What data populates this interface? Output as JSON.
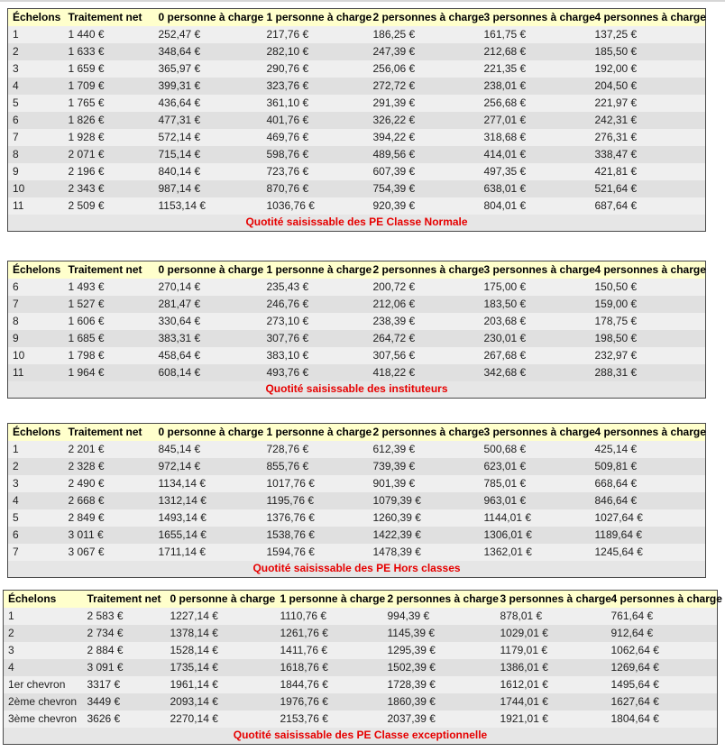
{
  "colors": {
    "header_bg": "#ffffcc",
    "row_light": "#efefef",
    "row_dark": "#e0e0e0",
    "caption_bg": "#e6e6e6",
    "caption_text": "#e60000",
    "table_border": "#4a4a4a"
  },
  "tables": [
    {
      "name": "pe-classe-normale",
      "headers": [
        "Échelons",
        "Traitement net",
        "0 personne à charge",
        "1 personne à charge",
        "2 personnes à charge",
        "3 personnes à charge",
        "4 personnes à charge"
      ],
      "rows": [
        [
          "1",
          "1 440 €",
          "252,47 €",
          "217,76 €",
          "186,25 €",
          "161,75 €",
          "137,25 €"
        ],
        [
          "2",
          "1 633 €",
          "348,64 €",
          "282,10 €",
          "247,39 €",
          "212,68 €",
          "185,50 €"
        ],
        [
          "3",
          "1 659 €",
          "365,97 €",
          "290,76 €",
          "256,06 €",
          "221,35 €",
          "192,00 €"
        ],
        [
          "4",
          "1 709 €",
          "399,31 €",
          "323,76 €",
          "272,72 €",
          "238,01 €",
          "204,50 €"
        ],
        [
          "5",
          "1 765 €",
          "436,64 €",
          "361,10 €",
          "291,39 €",
          "256,68 €",
          "221,97 €"
        ],
        [
          "6",
          "1 826 €",
          "477,31 €",
          "401,76 €",
          "326,22 €",
          "277,01 €",
          "242,31 €"
        ],
        [
          "7",
          "1 928 €",
          "572,14 €",
          "469,76 €",
          "394,22 €",
          "318,68 €",
          "276,31 €"
        ],
        [
          "8",
          "2 071 €",
          "715,14 €",
          "598,76 €",
          "489,56 €",
          "414,01 €",
          "338,47 €"
        ],
        [
          "9",
          "2 196 €",
          "840,14 €",
          "723,76 €",
          "607,39 €",
          "497,35 €",
          "421,81 €"
        ],
        [
          "10",
          "2 343 €",
          "987,14 €",
          "870,76 €",
          "754,39 €",
          "638,01 €",
          "521,64 €"
        ],
        [
          "11",
          "2 509 €",
          "1153,14 €",
          "1036,76 €",
          "920,39 €",
          "804,01 €",
          "687,64 €"
        ]
      ],
      "caption": "Quotité saisissable des PE Classe Normale"
    },
    {
      "name": "instituteurs",
      "headers": [
        "Échelons",
        "Traitement net",
        "0 personne à charge",
        "1 personne à charge",
        "2 personnes à charge",
        "3 personnes à charge",
        "4 personnes à charge"
      ],
      "rows": [
        [
          "6",
          "1 493 €",
          "270,14 €",
          "235,43 €",
          "200,72 €",
          "175,00 €",
          "150,50 €"
        ],
        [
          "7",
          "1 527 €",
          "281,47 €",
          "246,76 €",
          "212,06 €",
          "183,50 €",
          "159,00 €"
        ],
        [
          "8",
          "1 606 €",
          "330,64 €",
          "273,10 €",
          "238,39 €",
          "203,68 €",
          "178,75 €"
        ],
        [
          "9",
          "1 685 €",
          "383,31 €",
          "307,76 €",
          "264,72 €",
          "230,01 €",
          "198,50 €"
        ],
        [
          "10",
          "1 798 €",
          "458,64 €",
          "383,10 €",
          "307,56 €",
          "267,68 €",
          "232,97 €"
        ],
        [
          "11",
          "1 964 €",
          "608,14 €",
          "493,76 €",
          "418,22 €",
          "342,68 €",
          "288,31 €"
        ]
      ],
      "caption": "Quotité saisissable des instituteurs"
    },
    {
      "name": "pe-hors-classes",
      "headers": [
        "Échelons",
        "Traitement net",
        "0 personne à charge",
        "1 personne à charge",
        "2 personnes à charge",
        "3 personnes à charge",
        "4 personnes à charge"
      ],
      "rows": [
        [
          "1",
          "2 201 €",
          "845,14 €",
          "728,76 €",
          "612,39 €",
          "500,68 €",
          "425,14 €"
        ],
        [
          "2",
          "2 328 €",
          "972,14 €",
          "855,76 €",
          "739,39 €",
          "623,01 €",
          "509,81 €"
        ],
        [
          "3",
          "2 490 €",
          "1134,14 €",
          "1017,76 €",
          "901,39 €",
          "785,01 €",
          "668,64 €"
        ],
        [
          "4",
          "2 668 €",
          "1312,14 €",
          "1195,76 €",
          "1079,39 €",
          "963,01 €",
          "846,64 €"
        ],
        [
          "5",
          "2 849 €",
          "1493,14 €",
          "1376,76 €",
          "1260,39 €",
          "1144,01 €",
          "1027,64 €"
        ],
        [
          "6",
          "3 011 €",
          "1655,14 €",
          "1538,76 €",
          "1422,39 €",
          "1306,01 €",
          "1189,64 €"
        ],
        [
          "7",
          "3 067 €",
          "1711,14 €",
          "1594,76 €",
          "1478,39 €",
          "1362,01 €",
          "1245,64 €"
        ]
      ],
      "caption": "Quotité saisissable des PE Hors classes"
    },
    {
      "name": "pe-classe-exceptionnelle",
      "headers": [
        "Échelons",
        "Traitement net",
        "0 personne à charge",
        "1 personne à charge",
        "2 personnes à charge",
        "3 personnes à charge",
        "4 personnes à charge"
      ],
      "rows": [
        [
          "1",
          "2 583 €",
          "1227,14 €",
          "1110,76 €",
          "994,39 €",
          "878,01 €",
          "761,64 €"
        ],
        [
          "2",
          "2 734 €",
          "1378,14 €",
          "1261,76 €",
          "1145,39 €",
          "1029,01 €",
          "912,64 €"
        ],
        [
          "3",
          "2 884 €",
          "1528,14 €",
          "1411,76 €",
          "1295,39 €",
          "1179,01 €",
          "1062,64 €"
        ],
        [
          "4",
          "3 091 €",
          "1735,14 €",
          "1618,76 €",
          "1502,39 €",
          "1386,01 €",
          "1269,64 €"
        ],
        [
          "1er chevron",
          "3317 €",
          "1961,14 €",
          "1844,76 €",
          "1728,39 €",
          "1612,01 €",
          "1495,64 €"
        ],
        [
          "2ème chevron",
          "3449 €",
          "2093,14 €",
          "1976,76 €",
          "1860,39 €",
          "1744,01 €",
          "1627,64 €"
        ],
        [
          "3ème chevron",
          "3626 €",
          "2270,14 €",
          "2153,76 €",
          "2037,39 €",
          "1921,01 €",
          "1804,64 €"
        ]
      ],
      "caption": "Quotité saisissable des PE Classe exceptionnelle"
    }
  ]
}
